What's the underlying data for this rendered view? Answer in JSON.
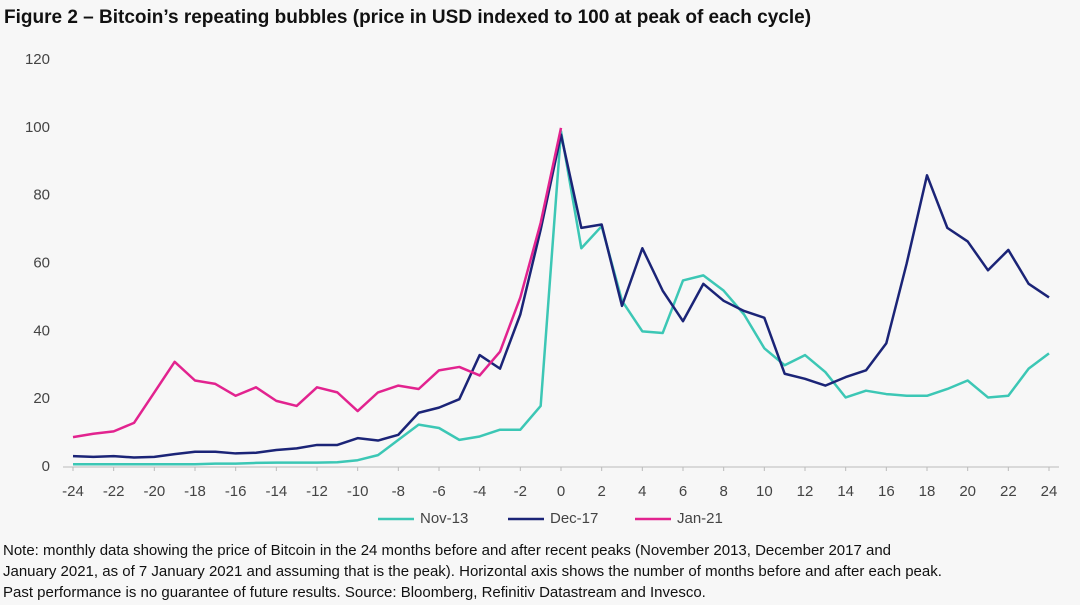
{
  "chart_data": {
    "type": "line",
    "title": "Figure 2 – Bitcoin’s repeating bubbles (price in USD indexed to 100 at peak of each cycle)",
    "x": [
      -24,
      -23,
      -22,
      -21,
      -20,
      -19,
      -18,
      -17,
      -16,
      -15,
      -14,
      -13,
      -12,
      -11,
      -10,
      -9,
      -8,
      -7,
      -6,
      -5,
      -4,
      -3,
      -2,
      -1,
      0,
      1,
      2,
      3,
      4,
      5,
      6,
      7,
      8,
      9,
      10,
      11,
      12,
      13,
      14,
      15,
      16,
      17,
      18,
      19,
      20,
      21,
      22,
      23,
      24
    ],
    "series": [
      {
        "name": "Nov-13",
        "color": "#3cc7b5",
        "values": [
          0.8,
          0.8,
          0.8,
          0.8,
          0.8,
          0.8,
          0.8,
          1,
          1,
          1.2,
          1.3,
          1.3,
          1.3,
          1.4,
          2,
          3.5,
          8,
          12.5,
          11.5,
          8,
          9,
          11,
          11,
          18,
          99,
          64.5,
          71,
          49,
          40,
          39.5,
          55,
          56.5,
          52,
          45,
          35,
          30,
          33,
          28,
          20.5,
          22.5,
          21.5,
          21,
          21,
          23,
          25.5,
          20.5,
          21,
          29,
          33.5
        ]
      },
      {
        "name": "Dec-17",
        "color": "#1b2477",
        "values": [
          3.2,
          3,
          3.2,
          2.8,
          3,
          3.8,
          4.5,
          4.5,
          4,
          4.2,
          5,
          5.5,
          6.5,
          6.5,
          8.5,
          7.8,
          9.5,
          16,
          17.5,
          20,
          33,
          29,
          45,
          70,
          98,
          70.5,
          71.5,
          47.5,
          64.5,
          52,
          43,
          54,
          49,
          46,
          44,
          27.5,
          26,
          24,
          26.5,
          28.5,
          36.5,
          60,
          86,
          70.5,
          66.5,
          58,
          64,
          54,
          50
        ]
      },
      {
        "name": "Jan-21",
        "color": "#e2238f",
        "values": [
          8.8,
          9.8,
          10.5,
          13,
          22,
          31,
          25.5,
          24.5,
          21,
          23.5,
          19.5,
          18,
          23.5,
          22,
          16.5,
          22,
          24,
          23,
          28.5,
          29.5,
          27,
          34,
          50,
          72,
          100,
          null,
          null,
          null,
          null,
          null,
          null,
          null,
          null,
          null,
          null,
          null,
          null,
          null,
          null,
          null,
          null,
          null,
          null,
          null,
          null,
          null,
          null,
          null,
          null
        ]
      }
    ],
    "xlim": [
      -24,
      24
    ],
    "xticks": [
      -24,
      -22,
      -20,
      -18,
      -16,
      -14,
      -12,
      -10,
      -8,
      -6,
      -4,
      -2,
      0,
      2,
      4,
      6,
      8,
      10,
      12,
      14,
      16,
      18,
      20,
      22,
      24
    ],
    "ylim": [
      0,
      120
    ],
    "yticks": [
      0,
      20,
      40,
      60,
      80,
      100,
      120
    ],
    "grid": false,
    "legend": "bottom",
    "note": [
      "Note: monthly data showing the price of Bitcoin in the 24 months before and after recent peaks (November 2013, December 2017 and",
      "January 2021, as of 7 January 2021 and assuming that is the peak). Horizontal axis shows the number of months before and after each peak.",
      "Past performance is no guarantee of future results. Source: Bloomberg, Refinitiv Datastream and Invesco."
    ]
  }
}
